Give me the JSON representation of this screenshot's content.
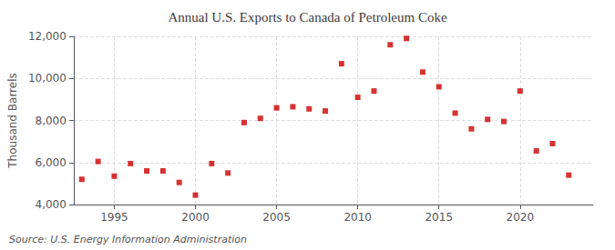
{
  "chart_data": {
    "type": "scatter",
    "title": "Annual U.S. Exports to Canada of Petroleum Coke",
    "ylabel": "Thousand Barrels",
    "annotations": [
      "Source: U.S. Energy Information Administration"
    ],
    "x": [
      1993,
      1994,
      1995,
      1996,
      1997,
      1998,
      1999,
      2000,
      2001,
      2002,
      2003,
      2004,
      2005,
      2006,
      2007,
      2008,
      2009,
      2010,
      2011,
      2012,
      2013,
      2014,
      2015,
      2016,
      2017,
      2018,
      2019,
      2020,
      2021,
      2022,
      2023
    ],
    "values": [
      5200,
      6050,
      5350,
      5950,
      5600,
      5600,
      5050,
      4450,
      5950,
      5500,
      7900,
      8100,
      8600,
      8650,
      8550,
      8450,
      10700,
      9100,
      9400,
      11600,
      11900,
      10300,
      9600,
      8350,
      7600,
      8050,
      7950,
      9400,
      6550,
      6900,
      5400
    ],
    "color": "#cc0000",
    "marker": "square",
    "xlim": [
      1992.5,
      2024.5
    ],
    "xticks": [
      1995,
      2000,
      2005,
      2010,
      2015,
      2020
    ],
    "ylim": [
      4000,
      12000
    ],
    "yticks": [
      {
        "value": 4000,
        "label": "4,000"
      },
      {
        "value": 6000,
        "label": "6,000"
      },
      {
        "value": 8000,
        "label": "8,000"
      },
      {
        "value": 10000,
        "label": "10,000"
      },
      {
        "value": 12000,
        "label": "12,000"
      }
    ],
    "grid": true
  }
}
